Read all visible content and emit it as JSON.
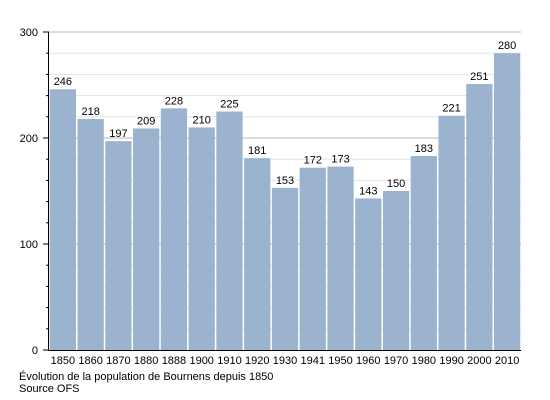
{
  "chart_data": {
    "type": "bar",
    "categories": [
      "1850",
      "1860",
      "1870",
      "1880",
      "1888",
      "1900",
      "1910",
      "1920",
      "1930",
      "1941",
      "1950",
      "1960",
      "1970",
      "1980",
      "1990",
      "2000",
      "2010"
    ],
    "values": [
      246,
      218,
      197,
      209,
      228,
      210,
      225,
      181,
      153,
      172,
      173,
      143,
      150,
      183,
      221,
      251,
      280
    ],
    "ylim": [
      0,
      300
    ],
    "yticks": [
      0,
      100,
      200,
      300
    ],
    "grid": true,
    "bar_color": "#9cb3cf",
    "title": "",
    "xlabel": "",
    "ylabel": ""
  },
  "caption": {
    "line1": "Évolution de la population de Bournens depuis 1850",
    "line2": "Source OFS"
  }
}
